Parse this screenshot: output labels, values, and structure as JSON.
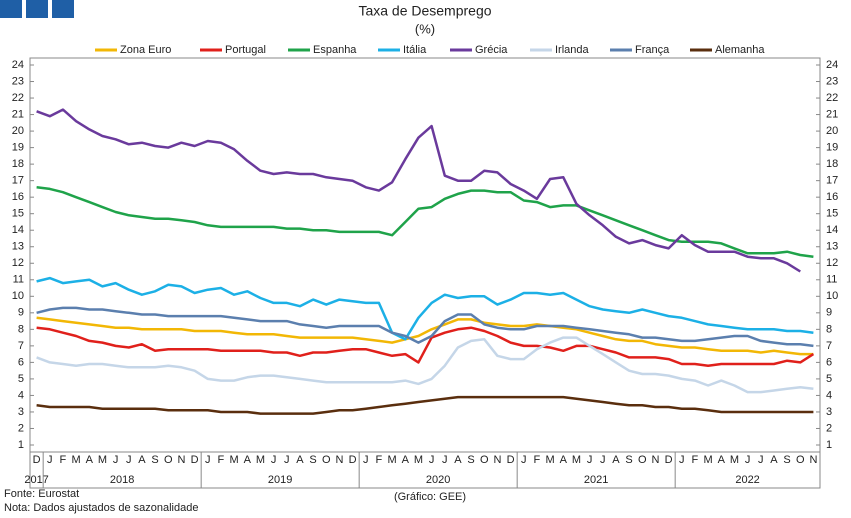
{
  "chart_data": {
    "type": "line",
    "title": "Taxa de Desemprego",
    "subtitle": "(%)",
    "categories": [
      "D",
      "J",
      "F",
      "M",
      "A",
      "M",
      "J",
      "J",
      "A",
      "S",
      "O",
      "N",
      "D",
      "J",
      "F",
      "M",
      "A",
      "M",
      "J",
      "J",
      "A",
      "S",
      "O",
      "N",
      "D",
      "J",
      "F",
      "M",
      "A",
      "M",
      "J",
      "J",
      "A",
      "S",
      "O",
      "N",
      "D",
      "J",
      "F",
      "M",
      "A",
      "M",
      "J",
      "J",
      "A",
      "S",
      "O",
      "N",
      "D",
      "J",
      "F",
      "M",
      "A",
      "M",
      "J",
      "J",
      "A",
      "S",
      "O",
      "N"
    ],
    "years": [
      "2017",
      "2018",
      "2019",
      "2020",
      "2021",
      "2022"
    ],
    "ylim": [
      1,
      24
    ],
    "yticks": [
      1,
      2,
      3,
      4,
      5,
      6,
      7,
      8,
      9,
      10,
      11,
      12,
      13,
      14,
      15,
      16,
      17,
      18,
      19,
      20,
      21,
      22,
      23,
      24
    ],
    "grid": false,
    "series": [
      {
        "name": "Zona Euro",
        "color": "#f2b705",
        "values": [
          8.7,
          8.6,
          8.5,
          8.4,
          8.3,
          8.2,
          8.1,
          8.1,
          8.0,
          8.0,
          8.0,
          8.0,
          7.9,
          7.9,
          7.9,
          7.8,
          7.7,
          7.7,
          7.7,
          7.6,
          7.5,
          7.5,
          7.5,
          7.5,
          7.5,
          7.4,
          7.3,
          7.2,
          7.4,
          7.6,
          8.0,
          8.3,
          8.6,
          8.6,
          8.4,
          8.3,
          8.2,
          8.2,
          8.3,
          8.2,
          8.1,
          8.0,
          7.8,
          7.6,
          7.4,
          7.3,
          7.3,
          7.1,
          7.0,
          6.9,
          6.9,
          6.8,
          6.7,
          6.7,
          6.7,
          6.6,
          6.7,
          6.6,
          6.5,
          6.5
        ]
      },
      {
        "name": "Portugal",
        "color": "#e0201b",
        "values": [
          8.1,
          8.0,
          7.8,
          7.6,
          7.3,
          7.2,
          7.0,
          6.9,
          7.1,
          6.7,
          6.8,
          6.8,
          6.8,
          6.8,
          6.7,
          6.7,
          6.7,
          6.7,
          6.6,
          6.6,
          6.4,
          6.6,
          6.6,
          6.7,
          6.8,
          6.8,
          6.6,
          6.4,
          6.5,
          6.0,
          7.5,
          7.8,
          8.0,
          8.1,
          7.9,
          7.6,
          7.2,
          7.0,
          7.0,
          6.9,
          6.7,
          7.0,
          7.0,
          6.8,
          6.6,
          6.3,
          6.3,
          6.3,
          6.2,
          5.9,
          5.9,
          5.8,
          5.9,
          5.9,
          5.9,
          5.9,
          5.9,
          6.1,
          6.0,
          6.5
        ]
      },
      {
        "name": "Espanha",
        "color": "#1fa34a",
        "values": [
          16.6,
          16.5,
          16.3,
          16.0,
          15.7,
          15.4,
          15.1,
          14.9,
          14.8,
          14.7,
          14.7,
          14.6,
          14.5,
          14.3,
          14.2,
          14.2,
          14.2,
          14.2,
          14.2,
          14.1,
          14.1,
          14.0,
          14.0,
          13.9,
          13.9,
          13.9,
          13.9,
          13.7,
          14.5,
          15.3,
          15.4,
          15.9,
          16.2,
          16.4,
          16.4,
          16.3,
          16.3,
          15.8,
          15.7,
          15.4,
          15.5,
          15.5,
          15.2,
          14.9,
          14.6,
          14.3,
          14.0,
          13.7,
          13.4,
          13.3,
          13.3,
          13.3,
          13.2,
          12.9,
          12.6,
          12.6,
          12.6,
          12.7,
          12.5,
          12.4
        ]
      },
      {
        "name": "Itália",
        "color": "#1cb0e6",
        "values": [
          10.9,
          11.1,
          10.8,
          10.9,
          11.0,
          10.6,
          10.8,
          10.4,
          10.1,
          10.3,
          10.7,
          10.6,
          10.2,
          10.4,
          10.5,
          10.1,
          10.3,
          9.9,
          9.6,
          9.6,
          9.4,
          9.8,
          9.5,
          9.8,
          9.7,
          9.6,
          9.6,
          7.8,
          7.4,
          8.7,
          9.6,
          10.1,
          9.9,
          10.0,
          10.0,
          9.5,
          9.8,
          10.2,
          10.2,
          10.1,
          10.2,
          9.8,
          9.4,
          9.2,
          9.1,
          9.0,
          9.2,
          9.0,
          8.8,
          8.7,
          8.5,
          8.3,
          8.2,
          8.1,
          8.0,
          8.0,
          8.0,
          7.9,
          7.9,
          7.8
        ]
      },
      {
        "name": "Grécia",
        "color": "#6a3a9c",
        "values": [
          21.2,
          20.9,
          21.3,
          20.6,
          20.1,
          19.7,
          19.5,
          19.2,
          19.3,
          19.1,
          19.0,
          19.3,
          19.1,
          19.4,
          19.3,
          18.9,
          18.2,
          17.6,
          17.4,
          17.5,
          17.4,
          17.4,
          17.2,
          17.1,
          17.0,
          16.6,
          16.4,
          16.9,
          18.3,
          19.6,
          20.3,
          17.3,
          17.0,
          17.0,
          17.6,
          17.5,
          16.8,
          16.4,
          15.9,
          17.1,
          17.2,
          15.6,
          14.9,
          14.3,
          13.6,
          13.2,
          13.4,
          13.1,
          12.9,
          13.7,
          13.1,
          12.7,
          12.7,
          12.7,
          12.4,
          12.3,
          12.3,
          12.0,
          11.5,
          null
        ]
      },
      {
        "name": "Irlanda",
        "color": "#c5d6e8",
        "values": [
          6.3,
          6.0,
          5.9,
          5.8,
          5.9,
          5.9,
          5.8,
          5.7,
          5.7,
          5.7,
          5.8,
          5.7,
          5.5,
          5.0,
          4.9,
          4.9,
          5.1,
          5.2,
          5.2,
          5.1,
          5.0,
          4.9,
          4.8,
          4.8,
          4.8,
          4.8,
          4.8,
          4.8,
          4.9,
          4.7,
          5.0,
          5.8,
          6.9,
          7.3,
          7.4,
          6.4,
          6.2,
          6.2,
          6.8,
          7.2,
          7.5,
          7.5,
          7.0,
          6.5,
          6.0,
          5.5,
          5.3,
          5.3,
          5.2,
          5.0,
          4.9,
          4.6,
          4.9,
          4.6,
          4.2,
          4.2,
          4.3,
          4.4,
          4.5,
          4.4
        ]
      },
      {
        "name": "França",
        "color": "#5b7fae",
        "values": [
          9.0,
          9.2,
          9.3,
          9.3,
          9.2,
          9.2,
          9.1,
          9.0,
          8.9,
          8.9,
          8.8,
          8.8,
          8.8,
          8.8,
          8.8,
          8.7,
          8.6,
          8.5,
          8.5,
          8.5,
          8.3,
          8.2,
          8.1,
          8.2,
          8.2,
          8.2,
          8.2,
          7.8,
          7.6,
          7.2,
          7.6,
          8.5,
          8.9,
          8.9,
          8.3,
          8.1,
          8.0,
          8.0,
          8.2,
          8.2,
          8.2,
          8.1,
          8.0,
          7.9,
          7.8,
          7.7,
          7.5,
          7.5,
          7.4,
          7.3,
          7.3,
          7.4,
          7.5,
          7.6,
          7.6,
          7.3,
          7.2,
          7.1,
          7.1,
          7.0
        ]
      },
      {
        "name": "Alemanha",
        "color": "#5a2e0e",
        "values": [
          3.4,
          3.3,
          3.3,
          3.3,
          3.3,
          3.2,
          3.2,
          3.2,
          3.2,
          3.2,
          3.1,
          3.1,
          3.1,
          3.1,
          3.0,
          3.0,
          3.0,
          2.9,
          2.9,
          2.9,
          2.9,
          2.9,
          3.0,
          3.1,
          3.1,
          3.2,
          3.3,
          3.4,
          3.5,
          3.6,
          3.7,
          3.8,
          3.9,
          3.9,
          3.9,
          3.9,
          3.9,
          3.9,
          3.9,
          3.9,
          3.9,
          3.8,
          3.7,
          3.6,
          3.5,
          3.4,
          3.4,
          3.3,
          3.3,
          3.2,
          3.2,
          3.1,
          3.0,
          3.0,
          3.0,
          3.0,
          3.0,
          3.0,
          3.0,
          3.0
        ]
      }
    ],
    "source": "Fonte: Eurostat",
    "note": "Nota: Dados ajustados de sazonalidade",
    "credit": "(Gráfico: GEE)"
  }
}
